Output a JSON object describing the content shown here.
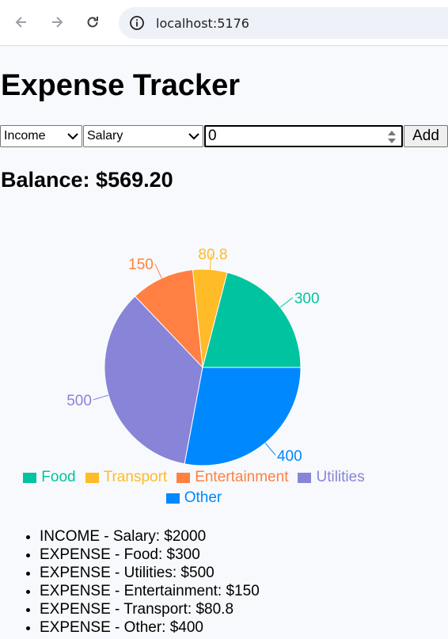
{
  "browser": {
    "url": "localhost:5176"
  },
  "app": {
    "title": "Expense Tracker",
    "type_select": "Income",
    "category_select": "Salary",
    "amount_value": "0",
    "add_label": "Add",
    "balance": "Balance: $569.20"
  },
  "chart_data": {
    "type": "pie",
    "categories": [
      "Food",
      "Transport",
      "Entertainment",
      "Utilities",
      "Other"
    ],
    "values": [
      300,
      80.8,
      150,
      500,
      400
    ],
    "data_labels": [
      "300",
      "80.8",
      "150",
      "500",
      "400"
    ],
    "colors": [
      "#00c49f",
      "#ffbb28",
      "#ff8042",
      "#8884d8",
      "#0088fe"
    ],
    "legend_position": "bottom"
  },
  "legend": [
    {
      "label": "Food",
      "color": "#00c49f"
    },
    {
      "label": "Transport",
      "color": "#ffbb28"
    },
    {
      "label": "Entertainment",
      "color": "#ff8042"
    },
    {
      "label": "Utilities",
      "color": "#8884d8"
    },
    {
      "label": "Other",
      "color": "#0088fe"
    }
  ],
  "transactions": [
    "INCOME - Salary: $2000",
    "EXPENSE - Food: $300",
    "EXPENSE - Utilities: $500",
    "EXPENSE - Entertainment: $150",
    "EXPENSE - Transport: $80.8",
    "EXPENSE - Other: $400"
  ]
}
